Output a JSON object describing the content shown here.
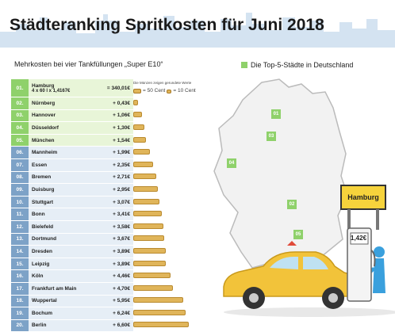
{
  "title": "Städteranking Spritkosten für Juni 2018",
  "subtitle": "Mehrkosten bei vier Tankfüllungen „Super E10“",
  "legend_top5": "Die Top-5-Städte in Deutschland",
  "coins_legend": {
    "title": "Die Münzen zeigen gerundete Werte",
    "large": "= 50 Cent",
    "small": "= 10 Cent"
  },
  "first_row": {
    "rank": "01.",
    "city": "Hamburg",
    "calc": "4 x 60 l x 1,4167€",
    "value": "= 340,01€"
  },
  "colors": {
    "top5": "#8fd16b",
    "other": "#7da2c7",
    "coin": "#e0b55a"
  },
  "sign": {
    "label": "Hamburg",
    "price": "1,42€"
  },
  "map_pins": [
    "01",
    "03",
    "04",
    "02",
    "05"
  ],
  "chart_data": {
    "type": "table",
    "rows": [
      {
        "rank": "02.",
        "city": "Nürnberg",
        "value_label": "+ 0,43€",
        "value": 0.43,
        "top5": true
      },
      {
        "rank": "03.",
        "city": "Hannover",
        "value_label": "+ 1,06€",
        "value": 1.06,
        "top5": true
      },
      {
        "rank": "04.",
        "city": "Düsseldorf",
        "value_label": "+ 1,30€",
        "value": 1.3,
        "top5": true
      },
      {
        "rank": "05.",
        "city": "München",
        "value_label": "+ 1,54€",
        "value": 1.54,
        "top5": true
      },
      {
        "rank": "06.",
        "city": "Mannheim",
        "value_label": "+ 1,99€",
        "value": 1.99,
        "top5": false
      },
      {
        "rank": "07.",
        "city": "Essen",
        "value_label": "+ 2,35€",
        "value": 2.35,
        "top5": false
      },
      {
        "rank": "08.",
        "city": "Bremen",
        "value_label": "+ 2,71€",
        "value": 2.71,
        "top5": false
      },
      {
        "rank": "09.",
        "city": "Duisburg",
        "value_label": "+ 2,95€",
        "value": 2.95,
        "top5": false
      },
      {
        "rank": "10.",
        "city": "Stuttgart",
        "value_label": "+ 3,07€",
        "value": 3.07,
        "top5": false
      },
      {
        "rank": "11.",
        "city": "Bonn",
        "value_label": "+ 3,41€",
        "value": 3.41,
        "top5": false
      },
      {
        "rank": "12.",
        "city": "Bielefeld",
        "value_label": "+ 3,58€",
        "value": 3.58,
        "top5": false
      },
      {
        "rank": "13.",
        "city": "Dortmund",
        "value_label": "+ 3,67€",
        "value": 3.67,
        "top5": false
      },
      {
        "rank": "14.",
        "city": "Dresden",
        "value_label": "+ 3,89€",
        "value": 3.89,
        "top5": false
      },
      {
        "rank": "15.",
        "city": "Leipzig",
        "value_label": "+ 3,89€",
        "value": 3.89,
        "top5": false
      },
      {
        "rank": "16.",
        "city": "Köln",
        "value_label": "+ 4,46€",
        "value": 4.46,
        "top5": false
      },
      {
        "rank": "17.",
        "city": "Frankfurt am Main",
        "value_label": "+ 4,70€",
        "value": 4.7,
        "top5": false
      },
      {
        "rank": "18.",
        "city": "Wuppertal",
        "value_label": "+ 5,95€",
        "value": 5.95,
        "top5": false
      },
      {
        "rank": "19.",
        "city": "Bochum",
        "value_label": "+ 6,24€",
        "value": 6.24,
        "top5": false
      },
      {
        "rank": "20.",
        "city": "Berlin",
        "value_label": "+ 6,60€",
        "value": 6.6,
        "top5": false
      }
    ]
  }
}
